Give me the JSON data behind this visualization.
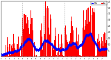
{
  "bar_color": "#FF0000",
  "median_color": "#0000FF",
  "background_color": "#FFFFFF",
  "ylim": [
    0,
    45
  ],
  "ytick_right": [
    5,
    10,
    15,
    20,
    25,
    30,
    35,
    40,
    45
  ],
  "n_points": 1440,
  "vline_color": "#AAAAAA",
  "vline_positions": [
    288,
    576,
    864
  ],
  "legend_actual_color": "#FF0000",
  "legend_median_color": "#0000FF",
  "seed": 7
}
